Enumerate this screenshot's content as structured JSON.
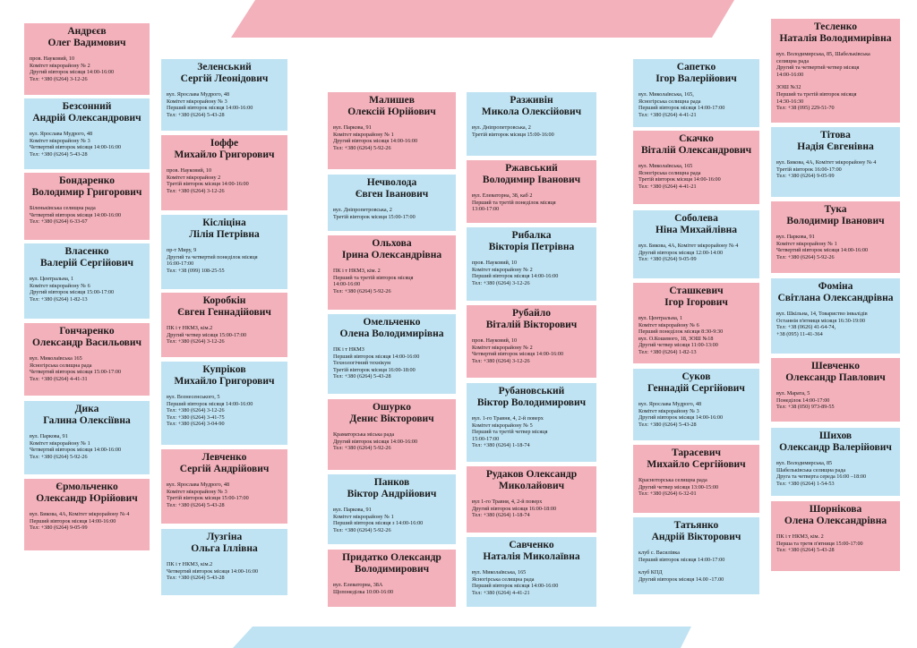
{
  "colors": {
    "pink": "#f3b1bb",
    "blue": "#bfe3f3",
    "text": "#1a1a1a"
  },
  "cards": [
    {
      "name": [
        "Андрєєв",
        "Олег Вадимович"
      ],
      "lines": [
        "пров. Науковий, 10",
        "Комітет мікрорайону № 2",
        "Другий вівторок місяця 14:00-16:00",
        "Тел: +380 (6264) 3-12-26"
      ]
    },
    {
      "name": [
        "Безсонний",
        "Андрій Олександрович"
      ],
      "lines": [
        "вул. Ярослава Мудрого, 48",
        "Комітет мікрорайону № 3",
        "Четвертий вівторок місяця 14:00-16:00",
        "Тел: +380 (6264) 5-43-28"
      ]
    },
    {
      "name": [
        "Бондаренко",
        "Володимир Григорович"
      ],
      "lines": [
        "Біленьківська селищна рада",
        "Четвертий вівторок місяця 14:00-16:00",
        "Тел: +380 (6264) 6-33-67"
      ]
    },
    {
      "name": [
        "Власенко",
        "Валерій Сергійович"
      ],
      "lines": [
        "вул. Центральна, 1",
        "Комітет мікрорайону № 6",
        "Другий вівторок місяця 15:00-17:00",
        "Тел: +380 (6264) 1-82-13"
      ]
    },
    {
      "name": [
        "Гончаренко",
        "Олександр Васильович"
      ],
      "lines": [
        "вул. Миколаївська 165",
        "Ясногірська селищна рада",
        "Четвертий вівторок місяця 15:00-17:00",
        "Тел: +380 (6264) 4-41-31"
      ]
    },
    {
      "name": [
        "Дика",
        "Галина Олексіївна"
      ],
      "lines": [
        "вул. Паркова, 91",
        "Комітет мікрорайону № 1",
        "Четвертий вівторок місяця 14:00-16:00",
        "Тел: +380 (6264) 5-92-26"
      ]
    },
    {
      "name": [
        "Єрмольченко",
        "Олександр Юрійович"
      ],
      "lines": [
        "вул. Бикова, 4А, Комітет мікрорайону № 4",
        "Перший вівторок місяця 14:00-16:00",
        "Тел: +380 (6264) 9-05-99"
      ]
    },
    {
      "name": [
        "Зеленський",
        "Сергій Леонідович"
      ],
      "lines": [
        "вул. Ярослава Мудрого, 48",
        "Комітет мікрорайону № 3",
        "Перший вівторок місяця 14:00-16:00",
        "Тел: +380 (6264) 5-43-28"
      ]
    },
    {
      "name": [
        "Іоффе",
        "Михайло Григорович"
      ],
      "lines": [
        "пров. Науковий, 10",
        "Комітет мікрорайону 2",
        "Третій вівторок місяця 14:00-16:00",
        "Тел: +380 (6264) 3-12-26"
      ]
    },
    {
      "name": [
        "Кісліціна",
        "Лілія Петрівна"
      ],
      "lines": [
        "пр-т Миру, 9",
        "Другий та четвертий понеділок місяця",
        "16:00-17:00",
        "Тел: +38 (099) 108-25-55"
      ]
    },
    {
      "name": [
        "Коробкін",
        "Євген Геннадійович"
      ],
      "lines": [
        "ПК і т НКМЗ, кім.2",
        "Другий четвер місяця 15:00-17:00",
        "Тел: +380 (6264) 3-12-26"
      ]
    },
    {
      "name": [
        "Купріков",
        "Михайло Григорович"
      ],
      "lines": [
        "вул. Вознесенського, 5",
        "Перший вівторок місяця 14:00-16:00",
        "Тел: +380 (6264) 3-12-26",
        "Тел: +380 (6264) 3-41-75",
        "Тел: +380 (6264) 3-04-90"
      ]
    },
    {
      "name": [
        "Левченко",
        "Сергій Андрійович"
      ],
      "lines": [
        "вул. Ярослава Мудрого, 48",
        "Комітет мікрорайону № 3",
        "Третій вівторок місяця 15:00-17:00",
        "Тел: +380 (6264) 5-43-28"
      ]
    },
    {
      "name": [
        "Лузгіна",
        "Ольга Іллівна"
      ],
      "lines": [
        "ПК і т НКМЗ, кім.2",
        "Четвертий вівторок місяця 14:00-16:00",
        "Тел: +380 (6264) 5-43-28"
      ]
    },
    {
      "name": [
        "Малишев",
        "Олексій Юрійович"
      ],
      "lines": [
        "вул. Паркова, 91",
        "Комітет мікрорайону № 1",
        "Другий вівторок місяця 14:00-16:00",
        "Тел: +380 (6264) 5-92-26"
      ]
    },
    {
      "name": [
        "Нечволода",
        "Євген Іванович"
      ],
      "lines": [
        "вул. Дніпропетровська, 2",
        "Третій вівторок місяця 15:00-17:00"
      ]
    },
    {
      "name": [
        "Ольхова",
        "Ірина Олександрівна"
      ],
      "lines": [
        "ПК і т НКМЗ, кім. 2",
        "Перший та третій вівторок місяця",
        "14:00-16:00",
        "Тел: +380 (6264) 5-92-26"
      ]
    },
    {
      "name": [
        "Омельченко",
        "Олена Володимирівна"
      ],
      "lines": [
        "ПК і т НКМЗ",
        "Перший вівторок місяця 14:00-16:00",
        "Технологічний технікум",
        "Третій вівторок місяця 16:00-18:00",
        "Тел: +380 (6264) 5-43-28"
      ]
    },
    {
      "name": [
        "Ошурко",
        "Денис Вікторович"
      ],
      "lines": [
        "Краматорська міська рада",
        "Другий вівторок місяця 14:00-16:00",
        "Тел: +380 (6264) 5-92-26"
      ]
    },
    {
      "name": [
        "Панков",
        "Віктор Андрійович"
      ],
      "lines": [
        "вул. Паркова, 91",
        "Комітет мікрорайону № 1",
        "Перший вівторок місяця з 14:00-16:00",
        "Тел: +380 (6264) 5-92-26"
      ]
    },
    {
      "name": [
        "Придатко Олександр",
        "Володимирович"
      ],
      "lines": [
        "вул. Елеваторна, 38А",
        "Щопонеділка 10:00-16:00"
      ]
    },
    {
      "name": [
        "Разживін",
        "Микола Олексійович"
      ],
      "lines": [
        "вул. Дніпропетровська, 2",
        "Третій вівторок місяця 15:00-16:00"
      ]
    },
    {
      "name": [
        "Ржавський",
        "Володимир Іванович"
      ],
      "lines": [
        "вул. Елеваторна, 38, каб 2",
        "Перший та третій понеділок місяця",
        "13:00-17:00"
      ]
    },
    {
      "name": [
        "Рибалка",
        "Вікторія Петрівна"
      ],
      "lines": [
        "пров. Науковий, 10",
        "Комітет мікрорайону № 2",
        "Перший вівторок місяця 14:00-16:00",
        "Тел: +380 (6264) 3-12-26"
      ]
    },
    {
      "name": [
        "Рубайло",
        "Віталій Вікторович"
      ],
      "lines": [
        "пров. Науковий, 10",
        "Комітет мікрорайону № 2",
        "Четвертий вівторок місяця 14:00-16:00",
        "Тел: +380 (6264) 3-12-26"
      ]
    },
    {
      "name": [
        "Рубановський",
        "Віктор Володимирович"
      ],
      "lines": [
        "вул. 1-го Травня, 4, 2-й поверх",
        "Комітет мікрорайону № 5",
        "Перший та третій четвер місяця",
        "15:00-17:00",
        "Тел: +380 (6264) 1-18-74"
      ]
    },
    {
      "name": [
        "Рудаков Олександр",
        "Миколайович"
      ],
      "lines": [
        "вул 1-го Травня, 4, 2-й поверх",
        "Другий вівторок місяця 16:00-18:00",
        "Тел: +380 (6264) 1-18-74"
      ]
    },
    {
      "name": [
        "Савченко",
        "Наталія Миколаївна"
      ],
      "lines": [
        "вул. Миколаївська, 165",
        "Ясногірська селищна рада",
        "Перший вівторок місяця 14:00-16:00",
        "Тел: +380 (6264) 4-41-21"
      ]
    },
    {
      "name": [
        "Сапетко",
        "Ігор Валерійович"
      ],
      "lines": [
        "вул. Миколаївська, 165,",
        "Ясногірська селищна рада",
        "Перший вівторок місяця 14:00-17:00",
        "Тел: +380 (6264) 4-41-21"
      ]
    },
    {
      "name": [
        "Скачко",
        "Віталій Олександрович"
      ],
      "lines": [
        "вул. Миколаївська, 165",
        "Ясногірська селищна рада",
        "Третій вівторок місяця 14:00-16:00",
        "Тел: +380 (6264) 4-41-21"
      ]
    },
    {
      "name": [
        "Соболева",
        "Ніна Михайлівна"
      ],
      "lines": [
        "вул. Бикова, 4А, Комітет мікрорайону № 4",
        "Другий вівторок місяця 12:00-14:00",
        "Тел: +380 (6264) 9-05-99"
      ]
    },
    {
      "name": [
        "Сташкевич",
        "Ігор Ігорович"
      ],
      "lines": [
        "вул. Центральна, 1",
        "Комітет мікрорайону № 6",
        "Перший понеділок місяця 8:30-9:30",
        "вул. О.Кошевого, 18, ЗОШ №18",
        "Другий четвер місяця 11:00-13:00",
        "Тел: +380 (6264) 1-82-13"
      ]
    },
    {
      "name": [
        "Суков",
        "Геннадій Сергійович"
      ],
      "lines": [
        "вул. Ярослава Мудрого, 48",
        "Комітет мікрорайону № 3",
        "Другий вівторок місяця 14:00-16:00",
        "Тел: +380 (6264) 5-43-28"
      ]
    },
    {
      "name": [
        "Тарасевич",
        "Михайло Сергійович"
      ],
      "lines": [
        "Красноторська селищна рада",
        "Другий четвер місяця 13:00-15:00",
        "Тел: +380 (6264) 6-32-01"
      ]
    },
    {
      "name": [
        "Татьянко",
        "Андрій Вікторович"
      ],
      "lines": [
        "клуб с. Василівка",
        "Перший вівторок місяця 14:00-17:00",
        "",
        "клуб КПД",
        "Другий вівторок місяця 14.00 -17.00"
      ]
    },
    {
      "name": [
        "Тесленко",
        "Наталія Володимирівна"
      ],
      "lines": [
        "вул. Володимирська, 85, Шабельківська",
        "селищна рада",
        "Другий та четвертий четвер місяця",
        "14:00-16:00",
        "",
        "ЗОШ №32",
        "Перший та третій вівторок місяця",
        "14:30-16:30",
        "Тел: +38 (095) 229-51-70"
      ]
    },
    {
      "name": [
        "Тітова",
        "Надія Євгенівна"
      ],
      "lines": [
        "вул. Бикова, 4А, Комітет мікрорайону № 4",
        "Третій вівторок 16:00-17:00",
        "Тел: +380 (6264) 9-05-99"
      ]
    },
    {
      "name": [
        "Тука",
        "Володимир Іванович"
      ],
      "lines": [
        "вул. Паркова, 91",
        "Комітет мікрорайону № 1",
        "Четвертий вівторок місяця 14:00-16:00",
        "Тел: +380 (6264) 5-92-26"
      ]
    },
    {
      "name": [
        "Фоміна",
        "Світлана Олександрівна"
      ],
      "lines": [
        "вул. Шкільна, 14, Товариство інвалідів",
        "Останнія п'ятниця місяця 16:30-19:00",
        "Тел: +38 (0626) 41-64-74,",
        "+38 (095) 11-41-364"
      ]
    },
    {
      "name": [
        "Шевченко",
        "Олександр Павлович"
      ],
      "lines": [
        "вул. Марата, 5",
        "Понеділок 14:00-17:00",
        "Тел: +38 (050) 973-89-55"
      ]
    },
    {
      "name": [
        "Шихов",
        "Олександр Валерійович"
      ],
      "lines": [
        "вул. Володимирська, 85",
        "Шабельківська селищна рада",
        "Друга та четверта середа 16:00 –18:00",
        "Тел: +380 (6264) 1-54-53"
      ]
    },
    {
      "name": [
        "Шорнікова",
        "Олена Олександрівна"
      ],
      "lines": [
        "ПК і т НКМЗ, кім. 2",
        "Перша та третя п'ятниця 15:00-17:00",
        "Тел: +380 (6264) 5-43-28"
      ]
    }
  ]
}
